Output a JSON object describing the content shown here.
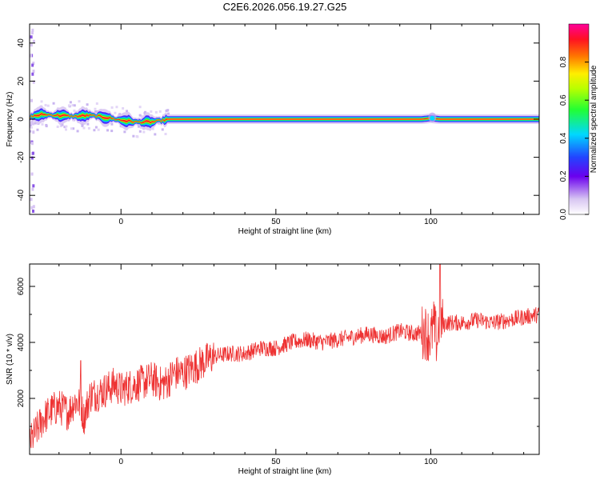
{
  "title": "C2E6.2026.056.19.27.G25",
  "chart_data": [
    {
      "type": "heatmap",
      "xlabel": "Height of straight line (km)",
      "ylabel": "Frequency (Hz)",
      "xlim": [
        -29.5,
        135
      ],
      "ylim": [
        -50,
        50
      ],
      "xticks": [
        0,
        50,
        100
      ],
      "yticks": [
        -40,
        -20,
        0,
        20,
        40
      ],
      "colorbar": {
        "label": "Normalized spectral amplitude",
        "range": [
          0,
          1
        ],
        "ticks": [
          "0.0",
          "0.2",
          "0.4",
          "0.6",
          "0.8"
        ]
      },
      "ridge": [
        {
          "x": -29,
          "freq": 1.5
        },
        {
          "x": -25,
          "freq": 2.5
        },
        {
          "x": -20,
          "freq": 2.0
        },
        {
          "x": -15,
          "freq": 1.5
        },
        {
          "x": -10,
          "freq": 2.0
        },
        {
          "x": -5,
          "freq": 1.0
        },
        {
          "x": 0,
          "freq": -0.5
        },
        {
          "x": 5,
          "freq": -1.5
        },
        {
          "x": 10,
          "freq": -1.5
        },
        {
          "x": 14,
          "freq": -0.5
        },
        {
          "x": 15,
          "freq": 0
        },
        {
          "x": 50,
          "freq": 0
        },
        {
          "x": 97,
          "freq": 0
        },
        {
          "x": 100,
          "freq": 0.5
        },
        {
          "x": 103,
          "freq": 0
        },
        {
          "x": 135,
          "freq": 0
        }
      ]
    },
    {
      "type": "line",
      "xlabel": "Height of straight line (km)",
      "ylabel": "SNR (10 * v/v)",
      "xlim": [
        -29.5,
        135
      ],
      "ylim": [
        0,
        6800
      ],
      "xticks": [
        0,
        50,
        100
      ],
      "yticks": [
        2000,
        4000,
        6000
      ],
      "series": [
        {
          "color": "#ee3333",
          "x": [
            -29.5,
            -27,
            -25,
            -22,
            -20,
            -17,
            -15,
            -13,
            -12,
            -10,
            -7,
            -5,
            -2,
            0,
            2,
            5,
            8,
            10,
            13,
            15,
            17,
            20,
            25,
            30,
            35,
            40,
            45,
            50,
            55,
            60,
            65,
            70,
            75,
            80,
            85,
            90,
            95,
            98,
            100,
            101,
            102,
            103,
            104,
            105,
            110,
            115,
            120,
            125,
            130,
            135
          ],
          "y": [
            400,
            900,
            1300,
            1600,
            1700,
            1500,
            1900,
            1800,
            1300,
            2100,
            2200,
            2300,
            2500,
            2300,
            2400,
            2500,
            2600,
            2700,
            2500,
            2600,
            2900,
            2900,
            3200,
            3500,
            3600,
            3600,
            3800,
            3800,
            4000,
            4100,
            4000,
            4100,
            4200,
            4300,
            4200,
            4400,
            4300,
            4400,
            4200,
            4600,
            4000,
            5000,
            4600,
            4700,
            4700,
            4800,
            4700,
            4800,
            4900,
            5000
          ]
        }
      ]
    }
  ]
}
